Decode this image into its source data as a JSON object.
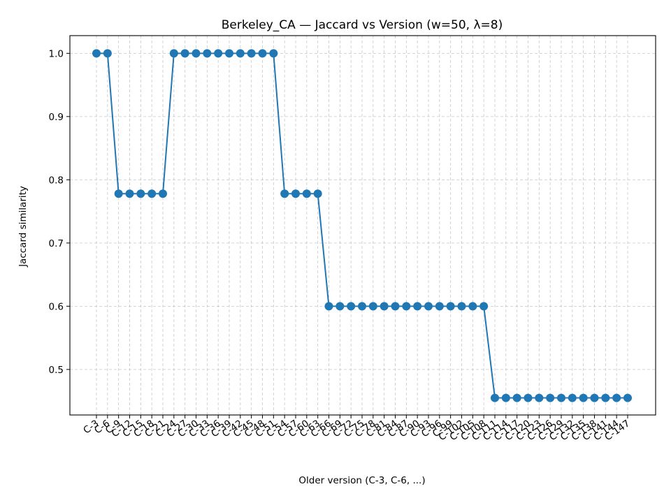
{
  "chart_data": {
    "type": "line",
    "title": "Berkeley_CA — Jaccard vs Version (w=50, λ=8)",
    "xlabel": "Older version (C-3, C-6, ...)",
    "ylabel": "Jaccard similarity",
    "categories": [
      "C-3",
      "C-6",
      "C-9",
      "C-12",
      "C-15",
      "C-18",
      "C-21",
      "C-24",
      "C-27",
      "C-30",
      "C-33",
      "C-36",
      "C-39",
      "C-42",
      "C-45",
      "C-48",
      "C-51",
      "C-54",
      "C-57",
      "C-60",
      "C-63",
      "C-66",
      "C-69",
      "C-72",
      "C-75",
      "C-78",
      "C-81",
      "C-84",
      "C-87",
      "C-90",
      "C-93",
      "C-96",
      "C-99",
      "C-102",
      "C-105",
      "C-108",
      "C-111",
      "C-114",
      "C-117",
      "C-120",
      "C-123",
      "C-126",
      "C-129",
      "C-132",
      "C-135",
      "C-138",
      "C-141",
      "C-144",
      "C-147"
    ],
    "series": [
      {
        "values": [
          1.0,
          1.0,
          0.778,
          0.778,
          0.778,
          0.778,
          0.778,
          1.0,
          1.0,
          1.0,
          1.0,
          1.0,
          1.0,
          1.0,
          1.0,
          1.0,
          1.0,
          0.778,
          0.778,
          0.778,
          0.778,
          0.6,
          0.6,
          0.6,
          0.6,
          0.6,
          0.6,
          0.6,
          0.6,
          0.6,
          0.6,
          0.6,
          0.6,
          0.6,
          0.6,
          0.6,
          0.455,
          0.455,
          0.455,
          0.455,
          0.455,
          0.455,
          0.455,
          0.455,
          0.455,
          0.455,
          0.455,
          0.455,
          0.455
        ],
        "color": "#1f77b4"
      }
    ],
    "yticks": [
      "0.5",
      "0.6",
      "0.7",
      "0.8",
      "0.9",
      "1.0"
    ],
    "ylim": [
      0.428,
      1.028
    ],
    "grid": true,
    "grid_style": "dashed",
    "marker": "circle"
  }
}
